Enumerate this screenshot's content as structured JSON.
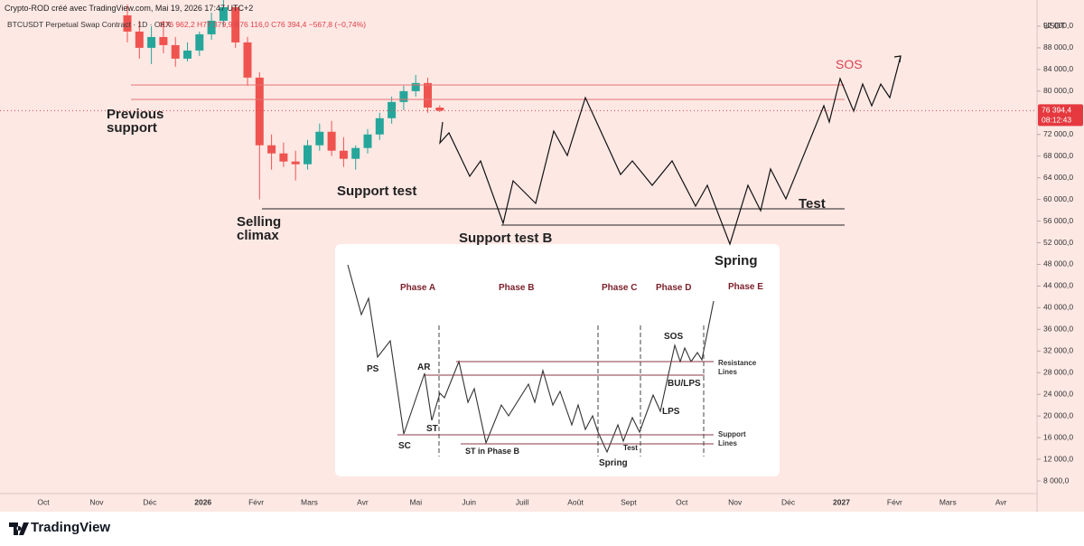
{
  "header": {
    "watermark": "Crypto-ROD créé avec TradingView.com, Mai 19, 2026 17:47 UTC+2"
  },
  "chart_data": {
    "type": "candlestick",
    "title": "BTCUSDT Perpetual Swap Contract · 1D · OKX",
    "ohlc_text": "O76 962,2 H77 379,9 B76 116,0 C76 394,4 −567,8 (−0,74%)",
    "y_axis_label": "USDT",
    "up_color": "#26a69a",
    "down_color": "#ef5350",
    "open": [
      94000,
      91000,
      88000,
      90000,
      88500,
      86000,
      87500,
      90500,
      93000,
      95500,
      89000,
      82500,
      70000,
      68500,
      67000,
      66500,
      70000,
      72500,
      69000,
      67500,
      69500,
      72000,
      75000,
      78000,
      80000,
      81500,
      76962.2
    ],
    "high": [
      96000,
      93000,
      92000,
      93000,
      90000,
      89000,
      91000,
      94500,
      97000,
      96000,
      90000,
      83500,
      72000,
      70500,
      69000,
      71000,
      74000,
      74500,
      71500,
      70000,
      73000,
      76000,
      79000,
      81000,
      83000,
      82500,
      77379.9
    ],
    "low": [
      89000,
      86000,
      85000,
      87000,
      84500,
      85500,
      86500,
      89500,
      92000,
      88000,
      81000,
      60000,
      65500,
      66000,
      63500,
      65500,
      69000,
      68000,
      66000,
      65500,
      68500,
      71000,
      74000,
      76500,
      79000,
      76000,
      76116.0
    ],
    "close": [
      91000,
      88000,
      90000,
      88500,
      86000,
      87500,
      90500,
      93000,
      95500,
      89000,
      82500,
      70000,
      68500,
      67000,
      66500,
      70000,
      72500,
      69000,
      67500,
      69500,
      72000,
      75000,
      78000,
      80000,
      81500,
      76962.2,
      76394.4
    ],
    "ylim": [
      4000,
      96000
    ],
    "yticks": [
      {
        "value": 8000,
        "label": "8 000,0"
      },
      {
        "value": 12000,
        "label": "12 000,0"
      },
      {
        "value": 16000,
        "label": "16 000,0"
      },
      {
        "value": 20000,
        "label": "20 000,0"
      },
      {
        "value": 24000,
        "label": "24 000,0"
      },
      {
        "value": 28000,
        "label": "28 000,0"
      },
      {
        "value": 32000,
        "label": "32 000,0"
      },
      {
        "value": 36000,
        "label": "36 000,0"
      },
      {
        "value": 40000,
        "label": "40 000,0"
      },
      {
        "value": 44000,
        "label": "44 000,0"
      },
      {
        "value": 48000,
        "label": "48 000,0"
      },
      {
        "value": 52000,
        "label": "52 000,0"
      },
      {
        "value": 56000,
        "label": "56 000,0"
      },
      {
        "value": 60000,
        "label": "60 000,0"
      },
      {
        "value": 64000,
        "label": "64 000,0"
      },
      {
        "value": 68000,
        "label": "68 000,0"
      },
      {
        "value": 72000,
        "label": "72 000,0"
      },
      {
        "value": 80000,
        "label": "80 000,0"
      },
      {
        "value": 84000,
        "label": "84 000,0"
      },
      {
        "value": 88000,
        "label": "88 000,0"
      },
      {
        "value": 92000,
        "label": "92 000,0"
      }
    ],
    "last_price": {
      "value": 76394.4,
      "label": "76 394,4"
    },
    "countdown": "08:12:43",
    "x_labels": [
      "Oct",
      "Nov",
      "Déc",
      "2026",
      "Févr",
      "Mars",
      "Avr",
      "Mai",
      "Juin",
      "Juill",
      "Août",
      "Sept",
      "Oct",
      "Nov",
      "Déc",
      "2027",
      "Févr",
      "Mars",
      "Avr"
    ]
  },
  "annotations": {
    "sos": "SOS",
    "previous_support": "Previous support",
    "selling_climax": "Selling climax",
    "support_test": "Support test",
    "support_test_b": "Support test B",
    "test": "Test",
    "spring": "Spring"
  },
  "inset": {
    "phase_a": "Phase A",
    "phase_b": "Phase B",
    "phase_c": "Phase C",
    "phase_d": "Phase D",
    "phase_e": "Phase E",
    "ps": "PS",
    "ar": "AR",
    "sc": "SC",
    "st": "ST",
    "st_phase_b": "ST in Phase B",
    "spring": "Spring",
    "test": "Test",
    "sos": "SOS",
    "bu_lps": "BU/LPS",
    "lps": "LPS",
    "resistance_lines": "Resistance Lines",
    "support_lines": "Support Lines"
  },
  "footer": {
    "brand": "TradingView"
  }
}
